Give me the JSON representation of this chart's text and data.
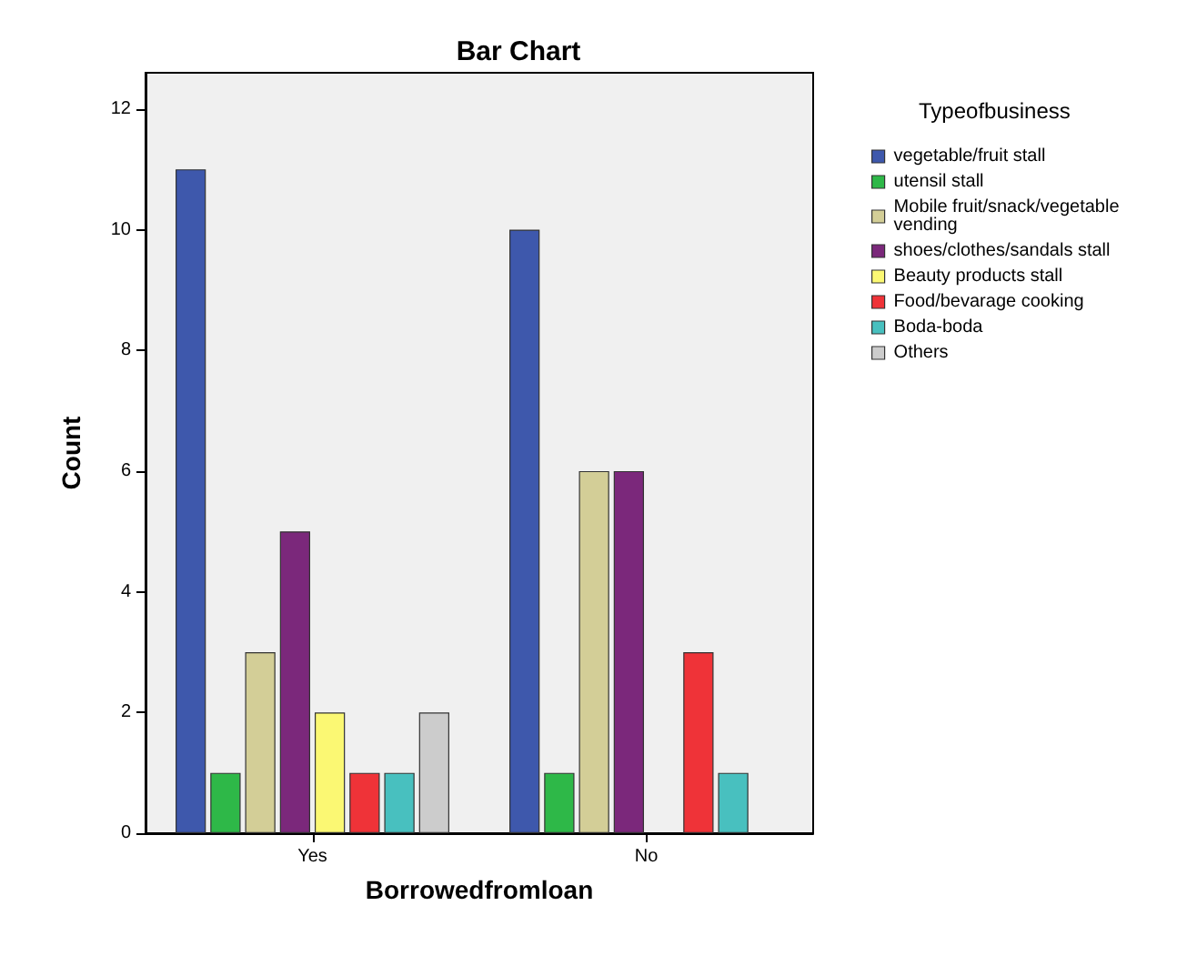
{
  "chart_data": {
    "type": "bar",
    "title": "Bar Chart",
    "xlabel": "Borrowedfromloan",
    "ylabel": "Count",
    "legend_title": "Typeofbusiness",
    "categories": [
      "Yes",
      "No"
    ],
    "series": [
      {
        "name": "vegetable/fruit stall",
        "color": "#3e58ac",
        "values": [
          11,
          10
        ]
      },
      {
        "name": "utensil stall",
        "color": "#2eb848",
        "values": [
          1,
          1
        ]
      },
      {
        "name": "Mobile fruit/snack/vegetable vending",
        "color": "#d3ce97",
        "values": [
          3,
          6
        ]
      },
      {
        "name": "shoes/clothes/sandals stall",
        "color": "#7b287b",
        "values": [
          5,
          6
        ]
      },
      {
        "name": "Beauty products stall",
        "color": "#fbf873",
        "values": [
          2,
          null
        ]
      },
      {
        "name": "Food/bevarage cooking",
        "color": "#ef3338",
        "values": [
          1,
          3
        ]
      },
      {
        "name": "Boda-boda",
        "color": "#48c0bf",
        "values": [
          1,
          1
        ]
      },
      {
        "name": "Others",
        "color": "#cccccc",
        "values": [
          2,
          null
        ]
      }
    ],
    "ylim": [
      0,
      12.6
    ],
    "yticks": [
      0,
      2,
      4,
      6,
      8,
      10,
      12
    ],
    "grid": false,
    "legend": "right"
  }
}
